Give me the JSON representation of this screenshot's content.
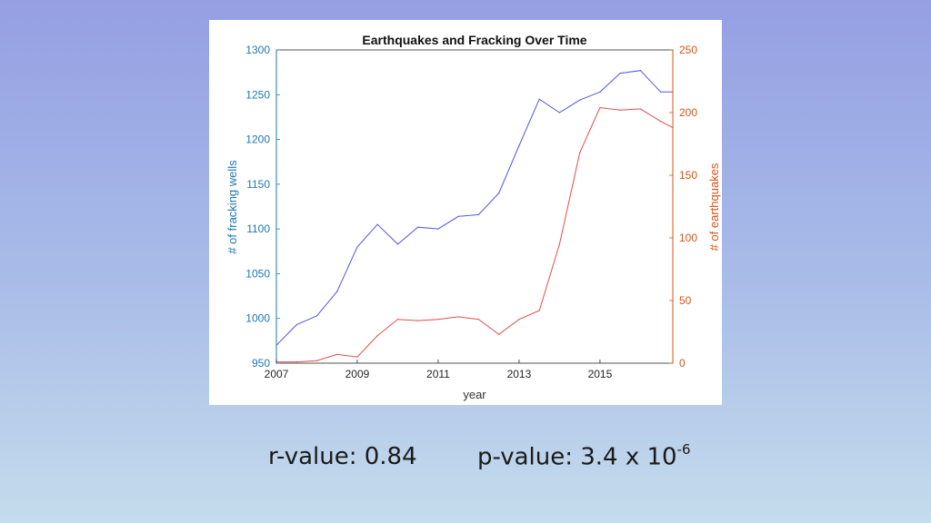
{
  "chart_data": {
    "type": "line",
    "title": "Earthquakes and Fracking Over Time",
    "xlabel": "year",
    "ylabel_left": "# of fracking wells",
    "ylabel_right": "# of earthquakes",
    "xlim": [
      2007,
      2016.8
    ],
    "ylim_left": [
      950,
      1300
    ],
    "ylim_right": [
      0,
      250
    ],
    "xticks": [
      2007,
      2009,
      2011,
      2013,
      2015
    ],
    "yticks_left": [
      950,
      1000,
      1050,
      1100,
      1150,
      1200,
      1250,
      1300
    ],
    "yticks_right": [
      0,
      50,
      100,
      150,
      200,
      250
    ],
    "colors": {
      "left": "#1f77b4",
      "right": "#d95319",
      "wells_line": "#5555e6",
      "quakes_line": "#e64c4c"
    },
    "series": [
      {
        "axis": "left",
        "x": [
          2007,
          2007.5,
          2008,
          2008.5,
          2009,
          2009.5,
          2010,
          2010.5,
          2011,
          2011.5,
          2012,
          2012.5,
          2013,
          2013.5,
          2014,
          2014.5,
          2015,
          2015.5,
          2016,
          2016.5,
          2016.8
        ],
        "values": [
          970,
          993,
          1003,
          1030,
          1080,
          1105,
          1083,
          1102,
          1100,
          1114,
          1116,
          1140,
          1193,
          1245,
          1230,
          1244,
          1253,
          1274,
          1277,
          1253,
          1253
        ]
      },
      {
        "axis": "right",
        "x": [
          2007,
          2007.5,
          2008,
          2008.5,
          2009,
          2009.5,
          2010,
          2010.5,
          2011,
          2011.5,
          2012,
          2012.5,
          2013,
          2013.5,
          2014,
          2014.5,
          2015,
          2015.5,
          2016,
          2016.5,
          2016.8
        ],
        "values": [
          1,
          1,
          2,
          7,
          5,
          22,
          35,
          34,
          35,
          37,
          35,
          23,
          35,
          42,
          95,
          168,
          204,
          202,
          203,
          193,
          188
        ]
      }
    ]
  },
  "stats": {
    "r_value": "r-value: 0.84",
    "p_value_prefix": "p-value: 3.4 x 10",
    "p_value_exponent": "-6"
  }
}
